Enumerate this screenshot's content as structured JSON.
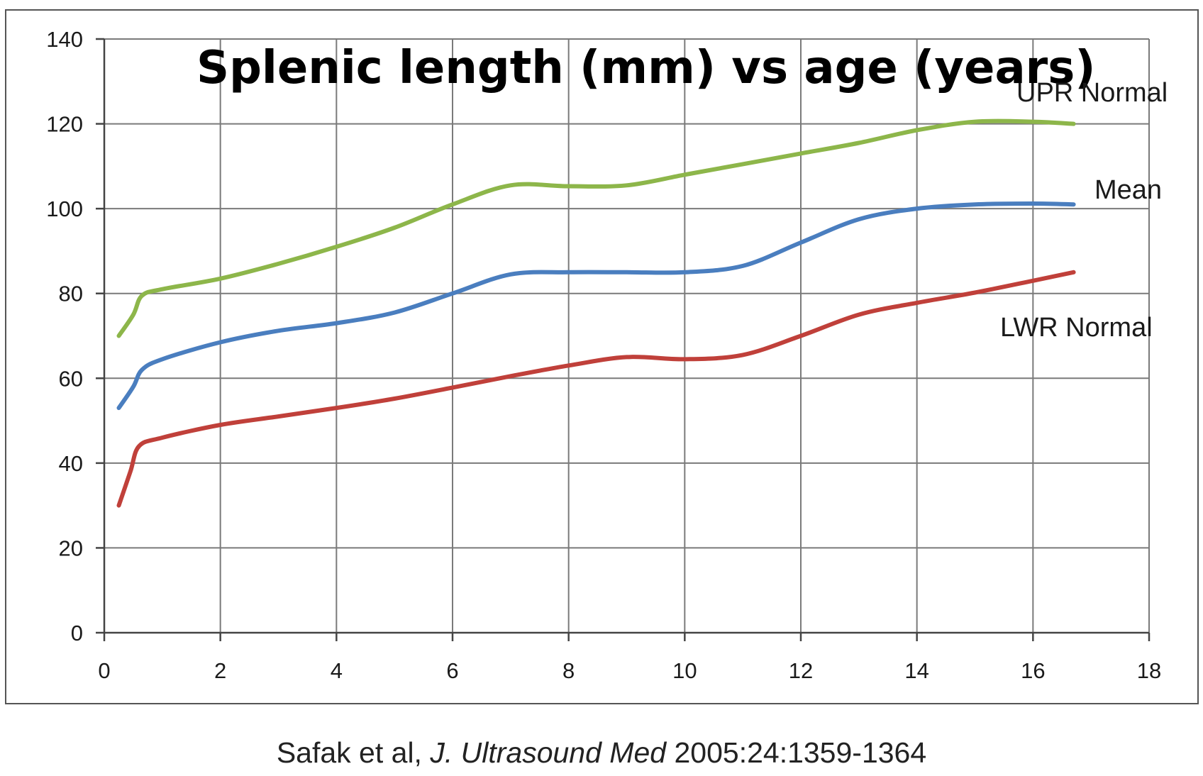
{
  "chart_data": {
    "type": "line",
    "title": "Splenic length (mm) vs age (years)",
    "xlabel": "",
    "ylabel": "",
    "xlim": [
      0,
      18
    ],
    "ylim": [
      0,
      140
    ],
    "x_ticks": [
      0,
      2,
      4,
      6,
      8,
      10,
      12,
      14,
      16,
      18
    ],
    "y_ticks": [
      0,
      20,
      40,
      60,
      80,
      100,
      120,
      140
    ],
    "grid": true,
    "series": [
      {
        "name": "UPR Normal",
        "color": "#8db64a",
        "points": [
          [
            0.25,
            70
          ],
          [
            0.5,
            75
          ],
          [
            0.65,
            79.5
          ],
          [
            1,
            81
          ],
          [
            2,
            83.5
          ],
          [
            3,
            87
          ],
          [
            4,
            91
          ],
          [
            5,
            95.5
          ],
          [
            6,
            101
          ],
          [
            7,
            105.5
          ],
          [
            8,
            105.3
          ],
          [
            9,
            105.5
          ],
          [
            10,
            108
          ],
          [
            11,
            110.5
          ],
          [
            12,
            113
          ],
          [
            13,
            115.5
          ],
          [
            14,
            118.5
          ],
          [
            15,
            120.5
          ],
          [
            16,
            120.5
          ],
          [
            16.7,
            120
          ]
        ]
      },
      {
        "name": "Mean",
        "color": "#4a7ebf",
        "points": [
          [
            0.25,
            53
          ],
          [
            0.5,
            58
          ],
          [
            0.65,
            62
          ],
          [
            1,
            64.5
          ],
          [
            2,
            68.5
          ],
          [
            3,
            71.2
          ],
          [
            4,
            73
          ],
          [
            5,
            75.5
          ],
          [
            6,
            80
          ],
          [
            7,
            84.5
          ],
          [
            8,
            85
          ],
          [
            9,
            85
          ],
          [
            10,
            85
          ],
          [
            11,
            86.5
          ],
          [
            12,
            92
          ],
          [
            13,
            97.5
          ],
          [
            14,
            100
          ],
          [
            15,
            101
          ],
          [
            16,
            101.2
          ],
          [
            16.7,
            101
          ]
        ]
      },
      {
        "name": "LWR Normal",
        "color": "#c0403a",
        "points": [
          [
            0.25,
            30
          ],
          [
            0.45,
            38
          ],
          [
            0.6,
            44
          ],
          [
            1,
            46
          ],
          [
            2,
            49
          ],
          [
            3,
            51
          ],
          [
            4,
            53
          ],
          [
            5,
            55.2
          ],
          [
            6,
            57.8
          ],
          [
            7,
            60.5
          ],
          [
            8,
            63
          ],
          [
            9,
            65
          ],
          [
            10,
            64.5
          ],
          [
            11,
            65.5
          ],
          [
            12,
            70
          ],
          [
            13,
            75
          ],
          [
            14,
            77.8
          ],
          [
            15,
            80.2
          ],
          [
            16,
            83
          ],
          [
            16.7,
            85
          ]
        ]
      }
    ],
    "annotations": [
      "UPR Normal",
      "Mean",
      "LWR Normal"
    ]
  },
  "citation": {
    "authors": "Safak et al,",
    "journal": "J. Ultrasound Med",
    "reference": "2005:24:1359-1364"
  }
}
